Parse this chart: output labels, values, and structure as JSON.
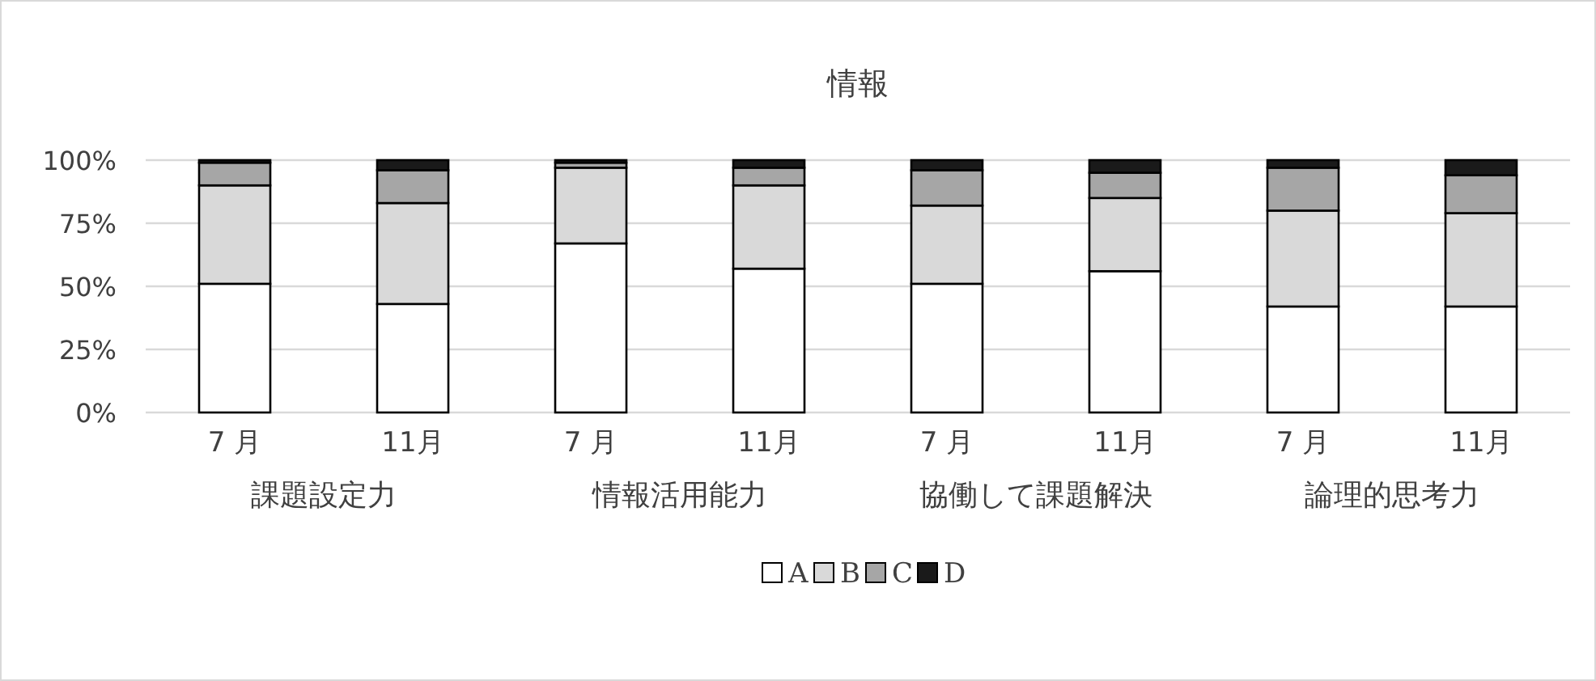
{
  "chart_data": {
    "type": "bar",
    "title": "情報",
    "stacked": true,
    "categories": [
      "7 月",
      "11月",
      "7 月",
      "11月",
      "7 月",
      "11月",
      "7 月",
      "11月"
    ],
    "annotations": [
      "課題設定力",
      "情報活用能力",
      "協働して課題解決",
      "論理的思考力"
    ],
    "series": [
      {
        "name": "A",
        "color": "#ffffff",
        "values": [
          51,
          43,
          67,
          57,
          51,
          56,
          42,
          42
        ]
      },
      {
        "name": "B",
        "color": "#d9d9d9",
        "values": [
          39,
          40,
          30,
          33,
          31,
          29,
          38,
          37
        ]
      },
      {
        "name": "C",
        "color": "#a6a6a6",
        "values": [
          9,
          13,
          2,
          7,
          14,
          10,
          17,
          15
        ]
      },
      {
        "name": "D",
        "color": "#1a1a1a",
        "values": [
          1,
          4,
          1,
          3,
          4,
          5,
          3,
          6
        ]
      }
    ],
    "ylim": [
      0,
      100
    ],
    "yticks": [
      {
        "value": 0,
        "label": "0%"
      },
      {
        "value": 25,
        "label": "25%"
      },
      {
        "value": 50,
        "label": "50%"
      },
      {
        "value": 75,
        "label": "75%"
      },
      {
        "value": 100,
        "label": "100%"
      }
    ],
    "grid": "y",
    "legend": "bottom"
  }
}
